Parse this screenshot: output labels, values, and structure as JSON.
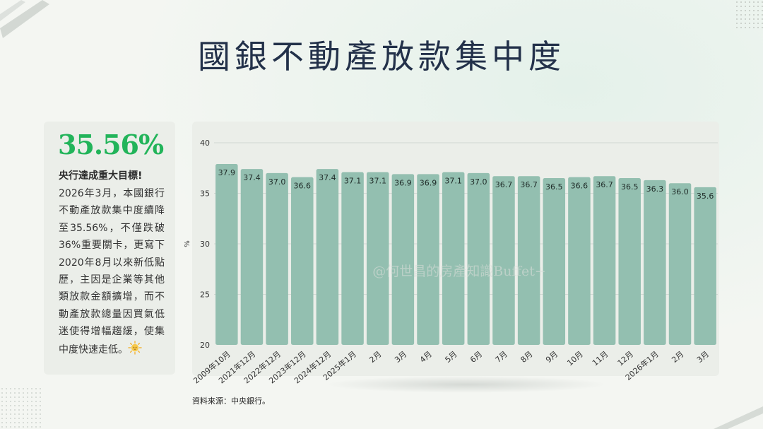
{
  "title": "國銀不動產放款集中度",
  "side_card": {
    "stat": "35.56%",
    "heading": "央行達成重大目標!",
    "body": "2026年3月，本國銀行不動產放款集中度續降至35.56%，不僅跌破36%重要關卡，更寫下2020年8月以來新低點歷，主因是企業等其他類放款金額擴增，而不動產放款總量因買氣低迷使得增幅趨緩，使集中度快速走低。",
    "icon": "sun-icon"
  },
  "chart_data": {
    "type": "bar",
    "categories": [
      "2009年10月",
      "2021年12月",
      "2022年12月",
      "2023年12月",
      "2024年12月",
      "2025年1月",
      "2月",
      "3月",
      "4月",
      "5月",
      "6月",
      "7月",
      "8月",
      "9月",
      "10月",
      "11月",
      "12月",
      "2026年1月",
      "2月",
      "3月"
    ],
    "values": [
      37.9,
      37.4,
      37.0,
      36.6,
      37.4,
      37.1,
      37.1,
      36.9,
      36.9,
      37.1,
      37.0,
      36.7,
      36.7,
      36.5,
      36.6,
      36.7,
      36.5,
      36.3,
      36.0,
      35.6
    ],
    "value_labels": [
      "37.9",
      "37.4",
      "37.0",
      "36.6",
      "37.4",
      "37.1",
      "37.1",
      "36.9",
      "36.9",
      "37.1",
      "37.0",
      "36.7",
      "36.7",
      "36.5",
      "36.6",
      "36.7",
      "36.5",
      "36.3",
      "36.0",
      "35.6"
    ],
    "ylabel": "%",
    "ylim": [
      20,
      40
    ],
    "yticks": [
      "20",
      "25",
      "30",
      "35",
      "40"
    ],
    "grid": true,
    "bar_color": "#93bfb0",
    "watermark": "@何世昌的房產知識Buffet+"
  },
  "source": "資料來源：中央銀行。"
}
